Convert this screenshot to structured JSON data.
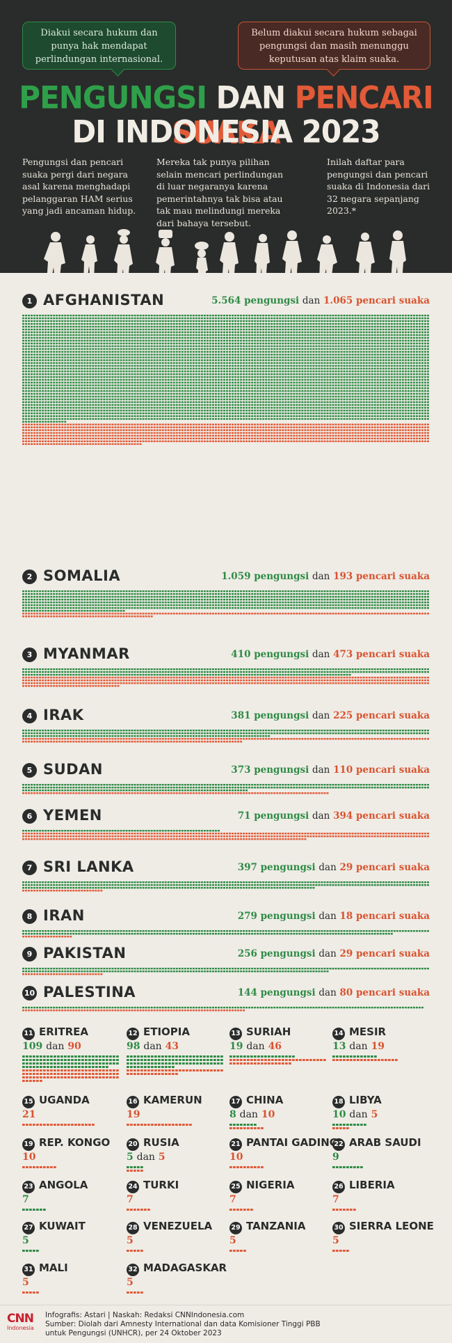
{
  "header": {
    "bubble_refugee": "Diakui secara hukum dan punya hak mendapat perlindungan internasional.",
    "bubble_seeker": "Belum diakui secara hukum sebagai pengungsi dan masih menunggu keputusan atas klaim suaka.",
    "title_line1_green": "PENGUNGSI",
    "title_line1_mid": "DAN",
    "title_line1_red": "PENCARI SUAKA",
    "title_line2": "DI INDONESIA 2023",
    "intro_1": "Pengungsi dan pencari suaka pergi dari negara asal karena menghadapi pelanggaran HAM serius yang jadi ancaman hidup.",
    "intro_2": "Mereka tak punya pilihan selain mencari perlindungan di luar negaranya karena pemerintahnya tak bisa atau tak mau melindungi mereka dari bahaya tersebut.",
    "intro_3": "Inilah daftar para pengungsi dan pencari suaka di Indonesia dari 32 negara sepanjang 2023.*"
  },
  "labels": {
    "refugees_word": "pengungsi",
    "seekers_word": "pencari suaka",
    "dan": "dan"
  },
  "colors": {
    "refugee": "#2e8b45",
    "seeker": "#e25a37",
    "dark": "#2a2c2b",
    "paper": "#efece6"
  },
  "big_countries": [
    {
      "rank": "1",
      "name": "AFGHANISTAN",
      "refugees": "5.564",
      "seekers": "1.065",
      "ref_n": 5564,
      "seek_n": 1065
    },
    {
      "rank": "2",
      "name": "SOMALIA",
      "refugees": "1.059",
      "seekers": "193",
      "ref_n": 1059,
      "seek_n": 193
    },
    {
      "rank": "3",
      "name": "MYANMAR",
      "refugees": "410",
      "seekers": "473",
      "ref_n": 410,
      "seek_n": 473
    },
    {
      "rank": "4",
      "name": "IRAK",
      "refugees": "381",
      "seekers": "225",
      "ref_n": 381,
      "seek_n": 225
    },
    {
      "rank": "5",
      "name": "SUDAN",
      "refugees": "373",
      "seekers": "110",
      "ref_n": 373,
      "seek_n": 110
    },
    {
      "rank": "6",
      "name": "YEMEN",
      "refugees": "71",
      "seekers": "394",
      "ref_n": 71,
      "seek_n": 394
    },
    {
      "rank": "7",
      "name": "SRI LANKA",
      "refugees": "397",
      "seekers": "29",
      "ref_n": 397,
      "seek_n": 29
    },
    {
      "rank": "8",
      "name": "IRAN",
      "refugees": "279",
      "seekers": "18",
      "ref_n": 279,
      "seek_n": 18
    },
    {
      "rank": "9",
      "name": "PAKISTAN",
      "refugees": "256",
      "seekers": "29",
      "ref_n": 256,
      "seek_n": 29
    },
    {
      "rank": "10",
      "name": "PALESTINA",
      "refugees": "144",
      "seekers": "80",
      "ref_n": 144,
      "seek_n": 80
    }
  ],
  "small_countries": [
    {
      "rank": "11",
      "name": "ERITREA",
      "refugees": "109",
      "seekers": "90",
      "ref_n": 109,
      "seek_n": 90
    },
    {
      "rank": "12",
      "name": "ETIOPIA",
      "refugees": "98",
      "seekers": "43",
      "ref_n": 98,
      "seek_n": 43
    },
    {
      "rank": "13",
      "name": "SURIAH",
      "refugees": "19",
      "seekers": "46",
      "ref_n": 19,
      "seek_n": 46
    },
    {
      "rank": "14",
      "name": "MESIR",
      "refugees": "13",
      "seekers": "19",
      "ref_n": 13,
      "seek_n": 19
    },
    {
      "rank": "15",
      "name": "UGANDA",
      "refugees": "",
      "seekers": "21",
      "ref_n": 0,
      "seek_n": 21
    },
    {
      "rank": "16",
      "name": "KAMERUN",
      "refugees": "",
      "seekers": "19",
      "ref_n": 0,
      "seek_n": 19
    },
    {
      "rank": "17",
      "name": "CHINA",
      "refugees": "8",
      "seekers": "10",
      "ref_n": 8,
      "seek_n": 10
    },
    {
      "rank": "18",
      "name": "LIBYA",
      "refugees": "10",
      "seekers": "5",
      "ref_n": 10,
      "seek_n": 5
    },
    {
      "rank": "19",
      "name": "REP. KONGO",
      "refugees": "",
      "seekers": "10",
      "ref_n": 0,
      "seek_n": 10
    },
    {
      "rank": "20",
      "name": "RUSIA",
      "refugees": "5",
      "seekers": "5",
      "ref_n": 5,
      "seek_n": 5
    },
    {
      "rank": "21",
      "name": "PANTAI GADING",
      "refugees": "",
      "seekers": "10",
      "ref_n": 0,
      "seek_n": 10
    },
    {
      "rank": "22",
      "name": "ARAB SAUDI",
      "refugees": "9",
      "seekers": "",
      "ref_n": 9,
      "seek_n": 0
    },
    {
      "rank": "23",
      "name": "ANGOLA",
      "refugees": "7",
      "seekers": "",
      "ref_n": 7,
      "seek_n": 0
    },
    {
      "rank": "24",
      "name": "TURKI",
      "refugees": "",
      "seekers": "7",
      "ref_n": 0,
      "seek_n": 7
    },
    {
      "rank": "25",
      "name": "NIGERIA",
      "refugees": "",
      "seekers": "7",
      "ref_n": 0,
      "seek_n": 7
    },
    {
      "rank": "26",
      "name": "LIBERIA",
      "refugees": "",
      "seekers": "7",
      "ref_n": 0,
      "seek_n": 7
    },
    {
      "rank": "27",
      "name": "KUWAIT",
      "refugees": "5",
      "seekers": "",
      "ref_n": 5,
      "seek_n": 0
    },
    {
      "rank": "28",
      "name": "VENEZUELA",
      "refugees": "",
      "seekers": "5",
      "ref_n": 0,
      "seek_n": 5
    },
    {
      "rank": "29",
      "name": "TANZANIA",
      "refugees": "",
      "seekers": "5",
      "ref_n": 0,
      "seek_n": 5
    },
    {
      "rank": "30",
      "name": "SIERRA LEONE",
      "refugees": "",
      "seekers": "5",
      "ref_n": 0,
      "seek_n": 5
    },
    {
      "rank": "31",
      "name": "MALI",
      "refugees": "",
      "seekers": "5",
      "ref_n": 0,
      "seek_n": 5
    },
    {
      "rank": "32",
      "name": "MADAGASKAR",
      "refugees": "",
      "seekers": "5",
      "ref_n": 0,
      "seek_n": 5
    }
  ],
  "footer": {
    "logo_top": "CNN",
    "logo_bottom": "Indonesia",
    "line1": "Infografis: Astari | Naskah: Redaksi CNNIndonesia.com",
    "line2": "Sumber: Diolah dari Amnesty International dan data Komisioner Tinggi PBB",
    "line3": "untuk Pengungsi (UNHCR), per 24 Oktober 2023"
  }
}
